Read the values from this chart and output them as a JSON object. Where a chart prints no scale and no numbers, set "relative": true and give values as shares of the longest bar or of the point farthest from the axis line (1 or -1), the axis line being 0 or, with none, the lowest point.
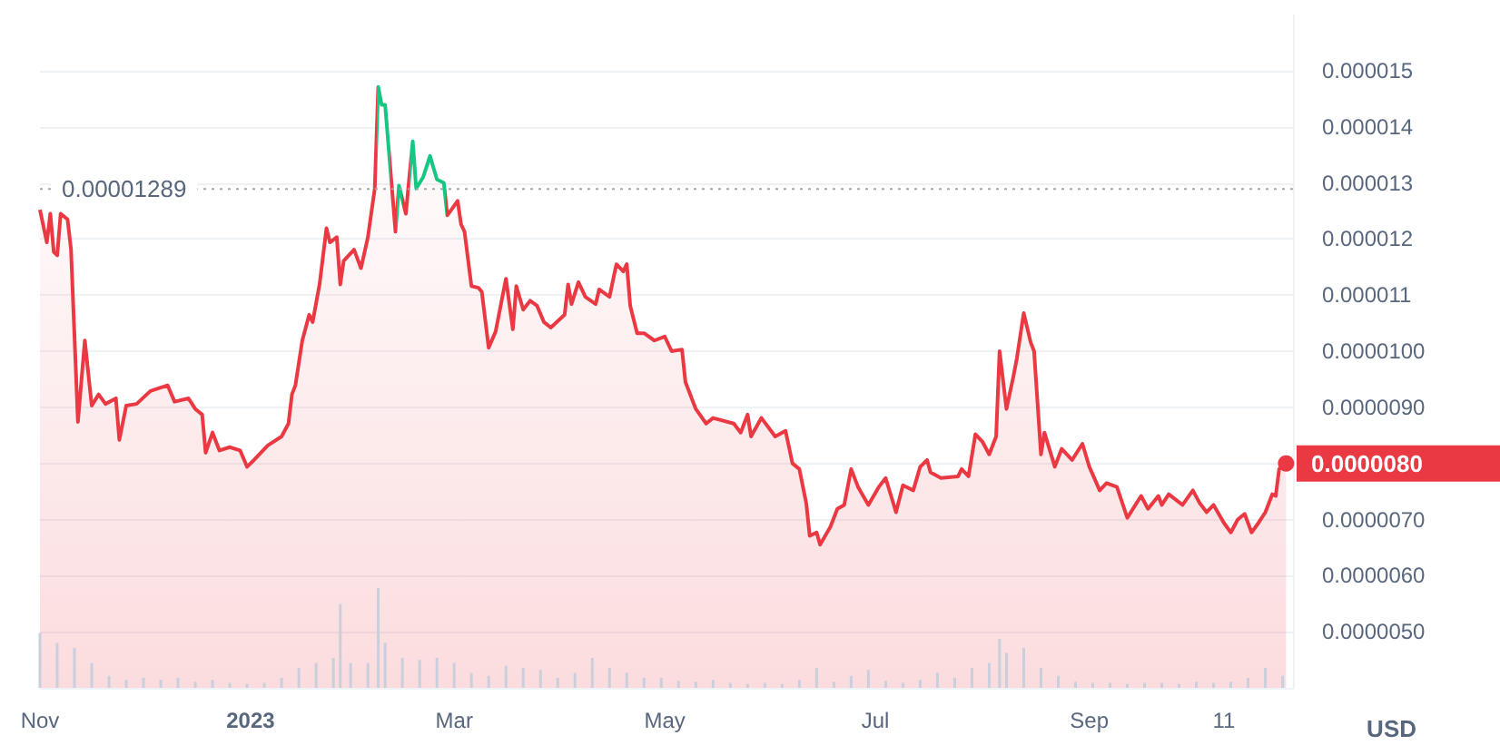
{
  "chart_data": [
    {
      "type": "area",
      "ylabel": "USD",
      "marker": "none",
      "grid": "y",
      "log": false,
      "xlim": [
        "2022-11-01",
        "2023-10-30"
      ],
      "ylim": [
        4e-06,
        1.6e-05
      ],
      "xticks": [
        {
          "value": "2022-11-01",
          "label": "Nov"
        },
        {
          "value": "2023-01-01",
          "label": "2023"
        },
        {
          "value": "2023-03-01",
          "label": "Mar"
        },
        {
          "value": "2023-05-01",
          "label": "May"
        },
        {
          "value": "2023-07-01",
          "label": "Jul"
        },
        {
          "value": "2023-09-01",
          "label": "Sep"
        },
        {
          "value": "2023-10-10",
          "label": "11"
        }
      ],
      "yticks": [
        {
          "value": 5e-06,
          "label": "0.0000050"
        },
        {
          "value": 6e-06,
          "label": "0.0000060"
        },
        {
          "value": 7e-06,
          "label": "0.0000070"
        },
        {
          "value": 8e-06,
          "label": null
        },
        {
          "value": 9e-06,
          "label": "0.0000090"
        },
        {
          "value": 1e-05,
          "label": "0.0000100"
        },
        {
          "value": 1.1e-05,
          "label": "0.000011"
        },
        {
          "value": 1.2e-05,
          "label": "0.000012"
        },
        {
          "value": 1.3e-05,
          "label": "0.000013"
        },
        {
          "value": 1.4e-05,
          "label": "0.000014"
        },
        {
          "value": 1.5e-05,
          "label": "0.000015"
        }
      ],
      "ref_lines": [
        {
          "axis": "y",
          "value": 1.289e-05,
          "label": "0.00001289",
          "color": "#a6a6a6",
          "line_style": "dotted"
        }
      ],
      "annotations": [
        {
          "text": "0.0000080",
          "x": "2023-10-28",
          "y": 8e-06
        }
      ],
      "x": [
        "2022-11-01",
        "2022-11-03",
        "2022-11-04",
        "2022-11-05",
        "2022-11-06",
        "2022-11-07",
        "2022-11-09",
        "2022-11-10",
        "2022-11-12",
        "2022-11-14",
        "2022-11-15",
        "2022-11-16",
        "2022-11-18",
        "2022-11-20",
        "2022-11-23",
        "2022-11-24",
        "2022-11-26",
        "2022-11-29",
        "2022-12-03",
        "2022-12-08",
        "2022-12-10",
        "2022-12-14",
        "2022-12-16",
        "2022-12-18",
        "2022-12-19",
        "2022-12-21",
        "2022-12-23",
        "2022-12-26",
        "2022-12-29",
        "2022-12-31",
        "2023-01-02",
        "2023-01-06",
        "2023-01-10",
        "2023-01-12",
        "2023-01-13",
        "2023-01-14",
        "2023-01-16",
        "2023-01-18",
        "2023-01-19",
        "2023-01-21",
        "2023-01-23",
        "2023-01-24",
        "2023-01-26",
        "2023-01-27",
        "2023-01-28",
        "2023-01-31",
        "2023-02-02",
        "2023-02-04",
        "2023-02-06",
        "2023-02-07",
        "2023-02-08",
        "2023-02-09",
        "2023-02-12",
        "2023-02-13",
        "2023-02-15",
        "2023-02-17",
        "2023-02-18",
        "2023-02-20",
        "2023-02-22",
        "2023-02-24",
        "2023-02-26",
        "2023-02-27",
        "2023-03-02",
        "2023-03-03",
        "2023-03-04",
        "2023-03-06",
        "2023-03-08",
        "2023-03-09",
        "2023-03-11",
        "2023-03-13",
        "2023-03-16",
        "2023-03-18",
        "2023-03-19",
        "2023-03-21",
        "2023-03-23",
        "2023-03-25",
        "2023-03-27",
        "2023-03-29",
        "2023-04-02",
        "2023-04-03",
        "2023-04-04",
        "2023-04-06",
        "2023-04-08",
        "2023-04-11",
        "2023-04-12",
        "2023-04-15",
        "2023-04-17",
        "2023-04-19",
        "2023-04-20",
        "2023-04-21",
        "2023-04-23",
        "2023-04-25",
        "2023-04-28",
        "2023-05-01",
        "2023-05-03",
        "2023-05-06",
        "2023-05-07",
        "2023-05-10",
        "2023-05-13",
        "2023-05-15",
        "2023-05-21",
        "2023-05-23",
        "2023-05-25",
        "2023-05-26",
        "2023-05-29",
        "2023-06-02",
        "2023-06-05",
        "2023-06-07",
        "2023-06-09",
        "2023-06-11",
        "2023-06-12",
        "2023-06-14",
        "2023-06-15",
        "2023-06-18",
        "2023-06-20",
        "2023-06-22",
        "2023-06-24",
        "2023-06-26",
        "2023-06-29",
        "2023-07-02",
        "2023-07-04",
        "2023-07-07",
        "2023-07-09",
        "2023-07-12",
        "2023-07-14",
        "2023-07-16",
        "2023-07-17",
        "2023-07-20",
        "2023-07-25",
        "2023-07-26",
        "2023-07-28",
        "2023-07-30",
        "2023-08-01",
        "2023-08-03",
        "2023-08-05",
        "2023-08-06",
        "2023-08-08",
        "2023-08-10",
        "2023-08-11",
        "2023-08-13",
        "2023-08-15",
        "2023-08-16",
        "2023-08-18",
        "2023-08-19",
        "2023-08-22",
        "2023-08-24",
        "2023-08-27",
        "2023-08-30",
        "2023-09-01",
        "2023-09-04",
        "2023-09-06",
        "2023-09-09",
        "2023-09-12",
        "2023-09-16",
        "2023-09-18",
        "2023-09-21",
        "2023-09-22",
        "2023-09-24",
        "2023-09-28",
        "2023-10-01",
        "2023-10-03",
        "2023-10-05",
        "2023-10-07",
        "2023-10-10",
        "2023-10-12",
        "2023-10-14",
        "2023-10-16",
        "2023-10-18",
        "2023-10-20",
        "2023-10-22",
        "2023-10-24",
        "2023-10-25",
        "2023-10-26",
        "2023-10-28"
      ],
      "series": [
        {
          "color": "#ea3943",
          "colors": [
            "#ea3943",
            "#ea3943",
            "#ea3943",
            "#ea3943",
            "#ea3943",
            "#ea3943",
            "#ea3943",
            "#ea3943",
            "#ea3943",
            "#ea3943",
            "#ea3943",
            "#ea3943",
            "#ea3943",
            "#ea3943",
            "#ea3943",
            "#ea3943",
            "#ea3943",
            "#ea3943",
            "#ea3943",
            "#ea3943",
            "#ea3943",
            "#ea3943",
            "#ea3943",
            "#ea3943",
            "#ea3943",
            "#ea3943",
            "#ea3943",
            "#ea3943",
            "#ea3943",
            "#ea3943",
            "#ea3943",
            "#ea3943",
            "#ea3943",
            "#ea3943",
            "#ea3943",
            "#ea3943",
            "#ea3943",
            "#ea3943",
            "#ea3943",
            "#ea3943",
            "#ea3943",
            "#ea3943",
            "#ea3943",
            "#ea3943",
            "#ea3943",
            "#ea3943",
            "#ea3943",
            "#ea3943",
            "#ea3943",
            "#16c784",
            "#16c784",
            "#16c784",
            "#ea3943",
            "#16c784",
            "#ea3943",
            "#16c784",
            "#16c784",
            "#16c784",
            "#16c784",
            "#16c784",
            "#16c784",
            "#ea3943",
            "#ea3943",
            "#ea3943",
            "#ea3943",
            "#ea3943",
            "#ea3943",
            "#ea3943",
            "#ea3943",
            "#ea3943",
            "#ea3943",
            "#ea3943",
            "#ea3943",
            "#ea3943",
            "#ea3943",
            "#ea3943",
            "#ea3943",
            "#ea3943",
            "#ea3943",
            "#ea3943",
            "#ea3943",
            "#ea3943",
            "#ea3943",
            "#ea3943",
            "#ea3943",
            "#ea3943",
            "#ea3943",
            "#ea3943",
            "#ea3943",
            "#ea3943",
            "#ea3943",
            "#ea3943",
            "#ea3943",
            "#ea3943",
            "#ea3943",
            "#ea3943",
            "#ea3943",
            "#ea3943",
            "#ea3943",
            "#ea3943",
            "#ea3943",
            "#ea3943",
            "#ea3943",
            "#ea3943",
            "#ea3943",
            "#ea3943",
            "#ea3943",
            "#ea3943",
            "#ea3943",
            "#ea3943",
            "#ea3943",
            "#ea3943",
            "#ea3943",
            "#ea3943",
            "#ea3943",
            "#ea3943",
            "#ea3943",
            "#ea3943",
            "#ea3943",
            "#ea3943",
            "#ea3943",
            "#ea3943",
            "#ea3943",
            "#ea3943",
            "#ea3943",
            "#ea3943",
            "#ea3943",
            "#ea3943",
            "#ea3943",
            "#ea3943",
            "#ea3943",
            "#ea3943",
            "#ea3943",
            "#ea3943",
            "#ea3943",
            "#ea3943",
            "#ea3943",
            "#ea3943",
            "#ea3943",
            "#ea3943",
            "#ea3943",
            "#ea3943",
            "#ea3943",
            "#ea3943",
            "#ea3943",
            "#ea3943",
            "#ea3943",
            "#ea3943",
            "#ea3943",
            "#ea3943",
            "#ea3943",
            "#ea3943",
            "#ea3943",
            "#ea3943",
            "#ea3943",
            "#ea3943",
            "#ea3943",
            "#ea3943",
            "#ea3943",
            "#ea3943",
            "#ea3943",
            "#ea3943",
            "#ea3943",
            "#ea3943",
            "#ea3943",
            "#ea3943",
            "#ea3943",
            "#ea3943",
            "#ea3943",
            "#ea3943",
            "#ea3943",
            "#ea3943",
            "#ea3943",
            "#ea3943"
          ],
          "values": [
            1.252e-05,
            1.194e-05,
            1.245e-05,
            1.177e-05,
            1.171e-05,
            1.245e-05,
            1.235e-05,
            1.181e-05,
            8.74e-06,
            1.019e-05,
            9.61e-06,
            9.03e-06,
            9.23e-06,
            9.06e-06,
            9.16e-06,
            8.42e-06,
            9.03e-06,
            9.06e-06,
            9.29e-06,
            9.39e-06,
            9.1e-06,
            9.16e-06,
            8.97e-06,
            8.87e-06,
            8.19e-06,
            8.55e-06,
            8.23e-06,
            8.29e-06,
            8.23e-06,
            7.94e-06,
            8.06e-06,
            8.32e-06,
            8.48e-06,
            8.71e-06,
            9.23e-06,
            9.39e-06,
            1.019e-05,
            1.065e-05,
            1.052e-05,
            1.119e-05,
            1.219e-05,
            1.194e-05,
            1.203e-05,
            1.119e-05,
            1.161e-05,
            1.181e-05,
            1.148e-05,
            1.203e-05,
            1.29e-05,
            1.471e-05,
            1.439e-05,
            1.439e-05,
            1.213e-05,
            1.295e-05,
            1.245e-05,
            1.374e-05,
            1.29e-05,
            1.31e-05,
            1.348e-05,
            1.306e-05,
            1.3e-05,
            1.242e-05,
            1.268e-05,
            1.226e-05,
            1.213e-05,
            1.116e-05,
            1.113e-05,
            1.106e-05,
            1.006e-05,
            1.035e-05,
            1.129e-05,
            1.039e-05,
            1.116e-05,
            1.074e-05,
            1.09e-05,
            1.081e-05,
            1.052e-05,
            1.042e-05,
            1.065e-05,
            1.119e-05,
            1.084e-05,
            1.123e-05,
            1.097e-05,
            1.084e-05,
            1.11e-05,
            1.097e-05,
            1.155e-05,
            1.142e-05,
            1.155e-05,
            1.081e-05,
            1.032e-05,
            1.032e-05,
            1.019e-05,
            1.026e-05,
            1e-05,
            1.003e-05,
            9.45e-06,
            8.97e-06,
            8.71e-06,
            8.81e-06,
            8.71e-06,
            8.55e-06,
            8.87e-06,
            8.48e-06,
            8.81e-06,
            8.48e-06,
            8.58e-06,
            8e-06,
            7.9e-06,
            7.29e-06,
            6.71e-06,
            6.77e-06,
            6.55e-06,
            6.87e-06,
            7.19e-06,
            7.26e-06,
            7.9e-06,
            7.58e-06,
            7.26e-06,
            7.58e-06,
            7.74e-06,
            7.13e-06,
            7.61e-06,
            7.52e-06,
            7.94e-06,
            8.06e-06,
            7.84e-06,
            7.74e-06,
            7.77e-06,
            7.9e-06,
            7.77e-06,
            8.52e-06,
            8.39e-06,
            8.16e-06,
            8.48e-06,
            1e-05,
            8.97e-06,
            9.55e-06,
            9.87e-06,
            1.068e-05,
            1.016e-05,
            1e-05,
            8.16e-06,
            8.55e-06,
            7.94e-06,
            8.26e-06,
            8.06e-06,
            8.35e-06,
            7.94e-06,
            7.52e-06,
            7.65e-06,
            7.58e-06,
            7.03e-06,
            7.42e-06,
            7.19e-06,
            7.42e-06,
            7.26e-06,
            7.45e-06,
            7.26e-06,
            7.52e-06,
            7.29e-06,
            7.13e-06,
            7.26e-06,
            6.94e-06,
            6.77e-06,
            7e-06,
            7.1e-06,
            6.77e-06,
            6.94e-06,
            7.13e-06,
            7.45e-06,
            7.42e-06,
            7.9e-06,
            8e-06
          ]
        }
      ]
    },
    {
      "type": "bar",
      "relative": true,
      "color": "#c9cfdc",
      "xlim": [
        "2022-11-01",
        "2023-10-30"
      ],
      "x": [
        "2022-11-01",
        "2022-11-06",
        "2022-11-11",
        "2022-11-16",
        "2022-11-21",
        "2022-11-26",
        "2022-12-01",
        "2022-12-06",
        "2022-12-11",
        "2022-12-16",
        "2022-12-21",
        "2022-12-26",
        "2022-12-31",
        "2023-01-05",
        "2023-01-10",
        "2023-01-15",
        "2023-01-20",
        "2023-01-25",
        "2023-01-27",
        "2023-01-30",
        "2023-02-04",
        "2023-02-07",
        "2023-02-09",
        "2023-02-14",
        "2023-02-19",
        "2023-02-24",
        "2023-03-01",
        "2023-03-06",
        "2023-03-11",
        "2023-03-16",
        "2023-03-21",
        "2023-03-26",
        "2023-03-31",
        "2023-04-05",
        "2023-04-10",
        "2023-04-15",
        "2023-04-20",
        "2023-04-25",
        "2023-04-30",
        "2023-05-05",
        "2023-05-10",
        "2023-05-15",
        "2023-05-20",
        "2023-05-25",
        "2023-05-30",
        "2023-06-04",
        "2023-06-09",
        "2023-06-14",
        "2023-06-19",
        "2023-06-24",
        "2023-06-29",
        "2023-07-04",
        "2023-07-09",
        "2023-07-14",
        "2023-07-19",
        "2023-07-24",
        "2023-07-29",
        "2023-08-03",
        "2023-08-06",
        "2023-08-08",
        "2023-08-13",
        "2023-08-18",
        "2023-08-23",
        "2023-08-28",
        "2023-09-02",
        "2023-09-07",
        "2023-09-12",
        "2023-09-17",
        "2023-09-22",
        "2023-09-27",
        "2023-10-02",
        "2023-10-07",
        "2023-10-12",
        "2023-10-17",
        "2023-10-22",
        "2023-10-27"
      ],
      "values": [
        0.55,
        0.45,
        0.4,
        0.25,
        0.12,
        0.08,
        0.1,
        0.08,
        0.1,
        0.06,
        0.08,
        0.05,
        0.04,
        0.05,
        0.1,
        0.2,
        0.25,
        0.3,
        0.84,
        0.25,
        0.25,
        1,
        0.45,
        0.3,
        0.28,
        0.3,
        0.25,
        0.15,
        0.12,
        0.22,
        0.2,
        0.18,
        0.1,
        0.15,
        0.3,
        0.2,
        0.15,
        0.1,
        0.1,
        0.07,
        0.06,
        0.08,
        0.05,
        0.04,
        0.05,
        0.04,
        0.08,
        0.2,
        0.06,
        0.12,
        0.18,
        0.07,
        0.05,
        0.08,
        0.15,
        0.1,
        0.2,
        0.25,
        0.49,
        0.35,
        0.4,
        0.2,
        0.12,
        0.06,
        0.05,
        0.05,
        0.04,
        0.05,
        0.05,
        0.04,
        0.06,
        0.05,
        0.06,
        0.1,
        0.2,
        0.12
      ]
    }
  ]
}
